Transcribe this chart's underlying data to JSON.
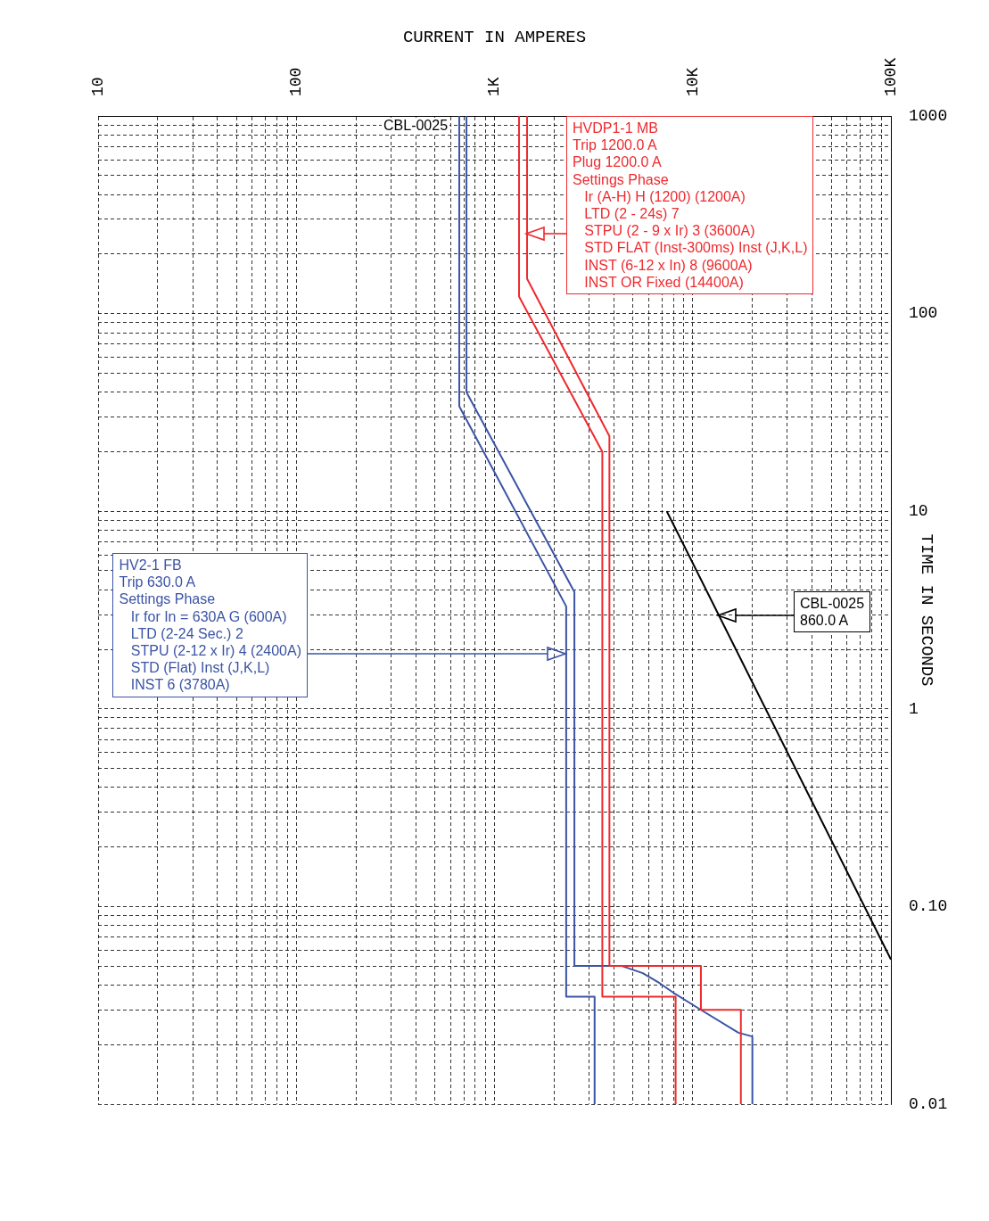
{
  "chart_data": {
    "type": "line",
    "xlabel": "CURRENT IN AMPERES",
    "ylabel": "TIME IN SECONDS",
    "log": "xy",
    "grid": true,
    "legend": false,
    "marker": "none",
    "xlim": [
      10,
      100000
    ],
    "ylim": [
      0.01,
      1000
    ],
    "xticks": [
      10,
      {
        "value": 20,
        "label": null
      },
      {
        "value": 30,
        "label": null
      },
      {
        "value": 40,
        "label": null
      },
      {
        "value": 50,
        "label": null
      },
      {
        "value": 60,
        "label": null
      },
      {
        "value": 70,
        "label": null
      },
      {
        "value": 80,
        "label": null
      },
      {
        "value": 90,
        "label": null
      },
      100,
      {
        "value": 200,
        "label": null
      },
      {
        "value": 300,
        "label": null
      },
      {
        "value": 400,
        "label": null
      },
      {
        "value": 500,
        "label": null
      },
      {
        "value": 600,
        "label": null
      },
      {
        "value": 700,
        "label": null
      },
      {
        "value": 800,
        "label": null
      },
      {
        "value": 900,
        "label": null
      },
      {
        "value": 1000,
        "label": "1K"
      },
      {
        "value": 2000,
        "label": null
      },
      {
        "value": 3000,
        "label": null
      },
      {
        "value": 4000,
        "label": null
      },
      {
        "value": 5000,
        "label": null
      },
      {
        "value": 6000,
        "label": null
      },
      {
        "value": 7000,
        "label": null
      },
      {
        "value": 8000,
        "label": null
      },
      {
        "value": 9000,
        "label": null
      },
      {
        "value": 10000,
        "label": "10K"
      },
      {
        "value": 20000,
        "label": null
      },
      {
        "value": 30000,
        "label": null
      },
      {
        "value": 40000,
        "label": null
      },
      {
        "value": 50000,
        "label": null
      },
      {
        "value": 60000,
        "label": null
      },
      {
        "value": 70000,
        "label": null
      },
      {
        "value": 80000,
        "label": null
      },
      {
        "value": 90000,
        "label": null
      },
      {
        "value": 100000,
        "label": "100K"
      }
    ],
    "yticks": [
      0.01,
      {
        "value": 0.02,
        "label": null
      },
      {
        "value": 0.03,
        "label": null
      },
      {
        "value": 0.04,
        "label": null
      },
      {
        "value": 0.05,
        "label": null
      },
      {
        "value": 0.06,
        "label": null
      },
      {
        "value": 0.07,
        "label": null
      },
      {
        "value": 0.08,
        "label": null
      },
      {
        "value": 0.09,
        "label": null
      },
      {
        "value": 0.1,
        "label": "0.10"
      },
      {
        "value": 0.2,
        "label": null
      },
      {
        "value": 0.3,
        "label": null
      },
      {
        "value": 0.4,
        "label": null
      },
      {
        "value": 0.5,
        "label": null
      },
      {
        "value": 0.6,
        "label": null
      },
      {
        "value": 0.7,
        "label": null
      },
      {
        "value": 0.8,
        "label": null
      },
      {
        "value": 0.9,
        "label": null
      },
      1,
      {
        "value": 2,
        "label": null
      },
      {
        "value": 3,
        "label": null
      },
      {
        "value": 4,
        "label": null
      },
      {
        "value": 5,
        "label": null
      },
      {
        "value": 6,
        "label": null
      },
      {
        "value": 7,
        "label": null
      },
      {
        "value": 8,
        "label": null
      },
      {
        "value": 9,
        "label": null
      },
      10,
      {
        "value": 20,
        "label": null
      },
      {
        "value": 30,
        "label": null
      },
      {
        "value": 40,
        "label": null
      },
      {
        "value": 50,
        "label": null
      },
      {
        "value": 60,
        "label": null
      },
      {
        "value": 70,
        "label": null
      },
      {
        "value": 80,
        "label": null
      },
      {
        "value": 90,
        "label": null
      },
      100,
      {
        "value": 200,
        "label": null
      },
      {
        "value": 300,
        "label": null
      },
      {
        "value": 400,
        "label": null
      },
      {
        "value": 500,
        "label": null
      },
      {
        "value": 600,
        "label": null
      },
      {
        "value": 700,
        "label": null
      },
      {
        "value": 800,
        "label": null
      },
      {
        "value": 900,
        "label": null
      },
      1000
    ],
    "series": [
      {
        "color": "#ee2a2e",
        "x": [
          1460,
          1460,
          3800,
          3800,
          11000,
          11000,
          17500,
          17500
        ],
        "values": [
          1000,
          150,
          24,
          0.05,
          0.05,
          0.03,
          0.03,
          0.01
        ]
      },
      {
        "color": "#ee2a2e",
        "x": [
          1330,
          1330,
          3500,
          3500,
          8200,
          8200
        ],
        "values": [
          1000,
          122,
          20,
          0.035,
          0.035,
          0.01
        ]
      },
      {
        "color": "#3b54a5",
        "x": [
          722,
          722,
          2530,
          2530,
          4400,
          5600,
          6800,
          8200,
          11000,
          17000,
          20000,
          20000
        ],
        "values": [
          1000,
          40,
          3.9,
          0.05,
          0.05,
          0.046,
          0.041,
          0.036,
          0.03,
          0.023,
          0.022,
          0.01
        ]
      },
      {
        "color": "#3b54a5",
        "x": [
          664,
          664,
          2300,
          2300,
          3200,
          3200
        ],
        "values": [
          1000,
          34,
          3.3,
          0.035,
          0.035,
          0.01
        ]
      },
      {
        "color": "#000000",
        "x": [
          7400,
          100000
        ],
        "values": [
          10,
          0.054
        ]
      }
    ],
    "annotations": [
      "CBL-0025",
      "HVDP1-1 MB\nTrip 1200.0 A\nPlug 1200.0 A\nSettings Phase\n   Ir (A-H) H (1200) (1200A)\n   LTD (2 - 24s) 7\n   STPU (2 - 9 x Ir) 3 (3600A)\n   STD FLAT (Inst-300ms) Inst (J,K,L)\n   INST (6-12 x In) 8 (9600A)\n   INST OR Fixed (14400A)",
      "HV2-1 FB\nTrip 630.0 A\nSettings Phase\n   Ir for In = 630A G (600A)\n   LTD (2-24 Sec.) 2\n   STPU (2-12 x Ir) 4 (2400A)\n   STD (Flat) Inst (J,K,L)\n   INST 6 (3780A)",
      "CBL-0025\n860.0 A"
    ]
  }
}
